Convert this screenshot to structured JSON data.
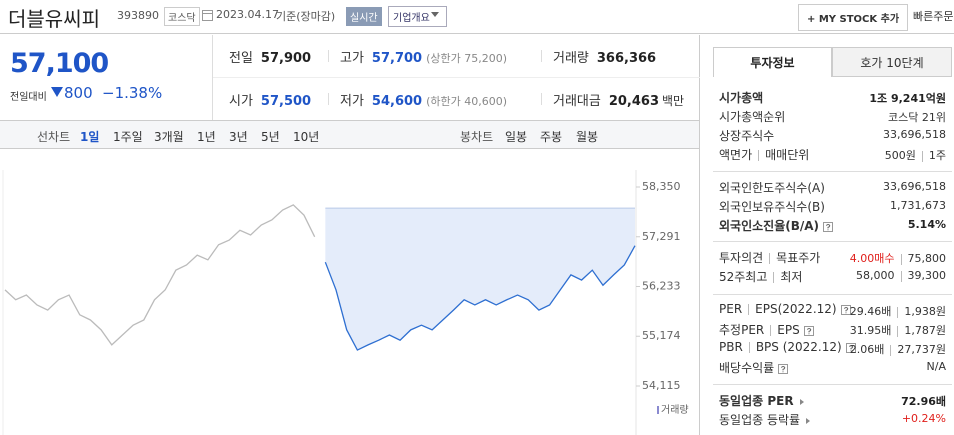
{
  "header": {
    "name": "더블유씨피",
    "code": "393890",
    "market": "코스닥",
    "date": "2023.04.17",
    "basis": "기준(장마감)",
    "realtime": "실시간",
    "company": "기업개요",
    "mystock": "+ MY STOCK 추가",
    "quick": "빠른주문"
  },
  "price": {
    "value": "57,100",
    "change_label": "전일대비",
    "change": "800",
    "rate": "−1.38%"
  },
  "summary": {
    "rows": [
      [
        {
          "label": "전일",
          "value": "57,900",
          "color": "#222"
        },
        {
          "label": "고가",
          "value": "57,700",
          "note": "(상한가 75,200)",
          "color": "#1f55c7"
        },
        {
          "label": "거래량",
          "value": "366,366",
          "color": "#222"
        }
      ],
      [
        {
          "label": "시가",
          "value": "57,500",
          "color": "#1f55c7"
        },
        {
          "label": "저가",
          "value": "54,600",
          "note": "(하한가 40,600)",
          "color": "#1f55c7"
        },
        {
          "label": "거래대금",
          "value": "20,463",
          "unit": "백만",
          "color": "#222"
        }
      ]
    ]
  },
  "tabs": {
    "line_label": "선차트",
    "line_periods": [
      "1일",
      "1주일",
      "3개월",
      "1년",
      "3년",
      "5년",
      "10년"
    ],
    "candle_label": "봉차트",
    "candle_periods": [
      "일봉",
      "주봉",
      "월봉"
    ]
  },
  "chart": {
    "type": "line",
    "ylim": [
      54115,
      58350
    ],
    "yticks": [
      {
        "value": 54115,
        "label": "54,115"
      },
      {
        "value": 55174,
        "label": "55,174"
      },
      {
        "value": 56233,
        "label": "56,233"
      },
      {
        "value": 57291,
        "label": "57,291"
      },
      {
        "value": 58350,
        "label": "58,350"
      }
    ],
    "baseline": 57900,
    "volume_label": "거래량",
    "series": [
      {
        "color": "#bbbbbb",
        "values": [
          56160,
          55950,
          56050,
          55840,
          55730,
          55950,
          56050,
          55630,
          55520,
          55310,
          54990,
          55200,
          55410,
          55520,
          55950,
          56160,
          56580,
          56690,
          56900,
          56800,
          57120,
          57220,
          57430,
          57330,
          57540,
          57650,
          57860,
          57970,
          57750,
          57290,
          null,
          null,
          null,
          null,
          null,
          null,
          null,
          null,
          null,
          null,
          null,
          null,
          null,
          null,
          null,
          null,
          null,
          null,
          null,
          null,
          null,
          null,
          null,
          null,
          null,
          null,
          null,
          null,
          null,
          null
        ]
      },
      {
        "color": "#2e6fd1",
        "values": [
          null,
          null,
          null,
          null,
          null,
          null,
          null,
          null,
          null,
          null,
          null,
          null,
          null,
          null,
          null,
          null,
          null,
          null,
          null,
          null,
          null,
          null,
          null,
          null,
          null,
          null,
          null,
          null,
          null,
          null,
          56750,
          56160,
          55310,
          54880,
          54990,
          55090,
          55200,
          55090,
          55310,
          55410,
          55310,
          55520,
          55730,
          55950,
          55840,
          55950,
          55840,
          55950,
          56050,
          55950,
          55730,
          55840,
          56160,
          56480,
          56370,
          56580,
          56260,
          56480,
          56690,
          57100
        ]
      }
    ]
  },
  "side": {
    "tabs": [
      "투자정보",
      "호가 10단계"
    ],
    "groups": [
      [
        {
          "label": [
            "시가총액"
          ],
          "value": [
            "1조 9,241억원"
          ],
          "bold": true
        },
        {
          "label": [
            "시가총액순위"
          ],
          "value": [
            "코스닥 21위"
          ]
        },
        {
          "label": [
            "상장주식수"
          ],
          "value": [
            "33,696,518"
          ]
        },
        {
          "label": [
            "액면가",
            "매매단위"
          ],
          "value": [
            "500원",
            "1주"
          ]
        }
      ],
      [
        {
          "label": [
            "외국인한도주식수(A)"
          ],
          "value": [
            "33,696,518"
          ]
        },
        {
          "label": [
            "외국인보유주식수(B)"
          ],
          "value": [
            "1,731,673"
          ]
        },
        {
          "label": [
            "외국인소진율(B/A)"
          ],
          "value": [
            "5.14%"
          ],
          "bold": true,
          "help": true
        }
      ],
      [
        {
          "label": [
            "투자의견",
            "목표주가"
          ],
          "value": [
            "4.00매수",
            "75,800"
          ],
          "color": "#e0201c"
        },
        {
          "label": [
            "52주최고",
            "최저"
          ],
          "value": [
            "58,000",
            "39,300"
          ]
        }
      ],
      [
        {
          "label": [
            "PER",
            "EPS(2022.12)"
          ],
          "value": [
            "29.46배",
            "1,938원"
          ],
          "help": true
        },
        {
          "label": [
            "추정PER",
            "EPS"
          ],
          "value": [
            "31.95배",
            "1,787원"
          ],
          "help": true
        },
        {
          "label": [
            "PBR",
            "BPS (2022.12)"
          ],
          "value": [
            "2.06배",
            "27,737원"
          ],
          "help": true
        },
        {
          "label": [
            "배당수익률"
          ],
          "value": [
            "N/A"
          ],
          "help": true
        }
      ],
      [
        {
          "label": [
            "동일업종 PER"
          ],
          "value": [
            "72.96배"
          ],
          "bold": true,
          "arrow": true
        },
        {
          "label": [
            "동일업종 등락률"
          ],
          "value": [
            "+0.24%"
          ],
          "arrow": true,
          "color": "#e0201c"
        }
      ]
    ]
  }
}
